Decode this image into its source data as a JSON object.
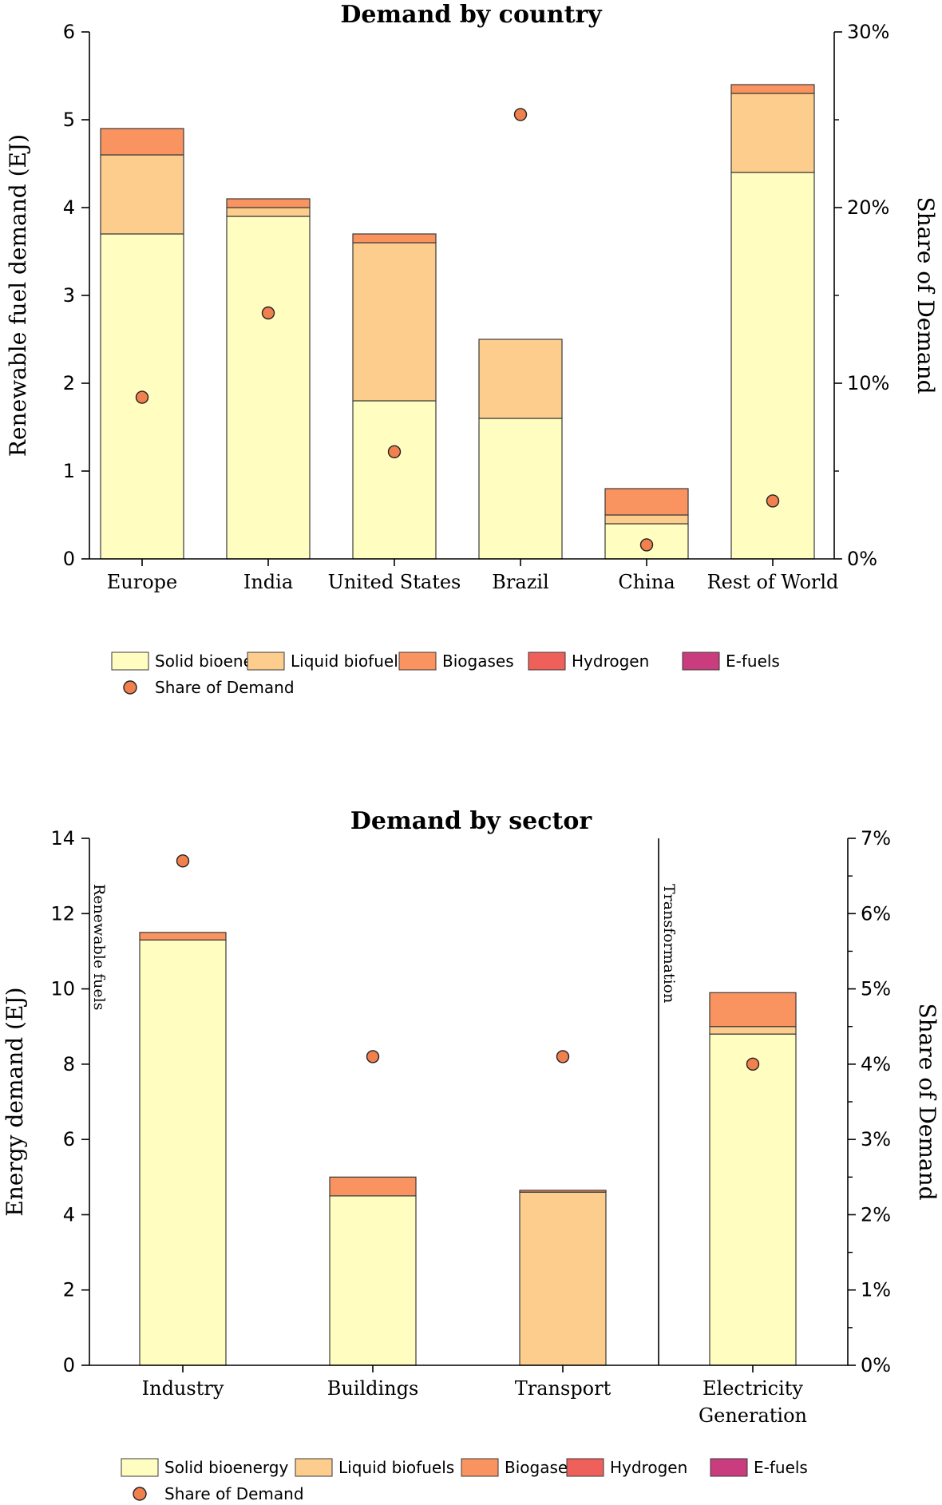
{
  "chart_data": [
    {
      "type": "bar",
      "stacked": true,
      "title": "Demand by country",
      "ylabel": "Renewable fuel demand (EJ)",
      "y2label": "Share of Demand",
      "ylim": [
        0,
        6
      ],
      "y2lim": [
        0,
        30
      ],
      "yticks": [
        "0",
        "1",
        "2",
        "3",
        "4",
        "5",
        "6"
      ],
      "y2ticks": [
        "0%",
        "10%",
        "20%",
        "30%"
      ],
      "categories": [
        "Europe",
        "India",
        "United States",
        "Brazil",
        "China",
        "Rest of World"
      ],
      "series": [
        {
          "name": "Solid bioenergy",
          "color": "#FFFDBF",
          "values": [
            3.7,
            3.9,
            1.8,
            1.6,
            0.4,
            4.4
          ]
        },
        {
          "name": "Liquid biofuels",
          "color": "#FCCD8C",
          "values": [
            0.9,
            0.1,
            1.8,
            0.9,
            0.1,
            0.9
          ]
        },
        {
          "name": "Biogases",
          "color": "#F99460",
          "values": [
            0.3,
            0.1,
            0.1,
            0.0,
            0.3,
            0.1
          ]
        },
        {
          "name": "Hydrogen",
          "color": "#F0605A",
          "values": [
            0,
            0,
            0,
            0,
            0,
            0
          ]
        },
        {
          "name": "E-fuels",
          "color": "#C93D7E",
          "values": [
            0,
            0,
            0,
            0,
            0,
            0
          ]
        }
      ],
      "share": {
        "name": "Share of Demand",
        "color": "#F0804E",
        "values": [
          9.2,
          14.0,
          6.1,
          25.3,
          0.8,
          3.3
        ]
      },
      "annotations": [],
      "legend": "bottom"
    },
    {
      "type": "bar",
      "stacked": true,
      "title": "Demand by sector",
      "ylabel": "Energy demand (EJ)",
      "y2label": "Share of Demand",
      "ylim": [
        0,
        14
      ],
      "y2lim": [
        0,
        7
      ],
      "yticks": [
        "0",
        "2",
        "4",
        "6",
        "8",
        "10",
        "12",
        "14"
      ],
      "y2ticks": [
        "0%",
        "1%",
        "2%",
        "3%",
        "4%",
        "5%",
        "6%",
        "7%"
      ],
      "categories": [
        "Industry",
        "Buildings",
        "Transport",
        "Electricity Generation"
      ],
      "series": [
        {
          "name": "Solid bioenergy",
          "color": "#FFFDBF",
          "values": [
            11.3,
            4.5,
            0.0,
            8.8
          ]
        },
        {
          "name": "Liquid biofuels",
          "color": "#FCCD8C",
          "values": [
            0.0,
            0.0,
            4.6,
            0.2
          ]
        },
        {
          "name": "Biogases",
          "color": "#F99460",
          "values": [
            0.2,
            0.5,
            0.05,
            0.9
          ]
        },
        {
          "name": "Hydrogen",
          "color": "#F0605A",
          "values": [
            0,
            0,
            0,
            0
          ]
        },
        {
          "name": "E-fuels",
          "color": "#C93D7E",
          "values": [
            0,
            0,
            0,
            0
          ]
        }
      ],
      "share": {
        "name": "Share of Demand",
        "color": "#F0804E",
        "values": [
          6.7,
          4.1,
          4.1,
          4.0
        ]
      },
      "annotations": [
        "Renewable fuels",
        "Transformation"
      ],
      "legend": "bottom"
    }
  ]
}
